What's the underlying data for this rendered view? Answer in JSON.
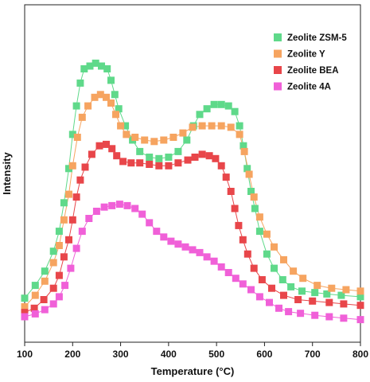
{
  "chart_data": {
    "type": "line",
    "xlabel": "Temperature (°C)",
    "ylabel": "Intensity",
    "xlim": [
      100,
      800
    ],
    "ylim": [
      0,
      1.0
    ],
    "xticks": [
      100,
      200,
      300,
      400,
      500,
      600,
      700,
      800
    ],
    "y_tick_labels": false,
    "legend_position": "top-right",
    "marker": "square",
    "series": [
      {
        "name": "Zeolite ZSM-5",
        "color": "#5fd98a",
        "points": [
          [
            100,
            0.065
          ],
          [
            122,
            0.11
          ],
          [
            142,
            0.16
          ],
          [
            160,
            0.23
          ],
          [
            172,
            0.3
          ],
          [
            182,
            0.4
          ],
          [
            192,
            0.52
          ],
          [
            200,
            0.64
          ],
          [
            208,
            0.74
          ],
          [
            216,
            0.82
          ],
          [
            224,
            0.87
          ],
          [
            236,
            0.88
          ],
          [
            248,
            0.89
          ],
          [
            260,
            0.88
          ],
          [
            272,
            0.87
          ],
          [
            280,
            0.83
          ],
          [
            288,
            0.78
          ],
          [
            296,
            0.73
          ],
          [
            310,
            0.67
          ],
          [
            325,
            0.62
          ],
          [
            340,
            0.58
          ],
          [
            360,
            0.56
          ],
          [
            380,
            0.555
          ],
          [
            400,
            0.56
          ],
          [
            420,
            0.58
          ],
          [
            438,
            0.62
          ],
          [
            452,
            0.67
          ],
          [
            465,
            0.71
          ],
          [
            480,
            0.73
          ],
          [
            495,
            0.745
          ],
          [
            510,
            0.745
          ],
          [
            525,
            0.74
          ],
          [
            538,
            0.72
          ],
          [
            548,
            0.67
          ],
          [
            556,
            0.6
          ],
          [
            564,
            0.52
          ],
          [
            572,
            0.44
          ],
          [
            580,
            0.38
          ],
          [
            590,
            0.3
          ],
          [
            605,
            0.22
          ],
          [
            620,
            0.17
          ],
          [
            638,
            0.13
          ],
          [
            655,
            0.105
          ],
          [
            678,
            0.09
          ],
          [
            705,
            0.085
          ],
          [
            730,
            0.08
          ],
          [
            760,
            0.075
          ],
          [
            800,
            0.07
          ]
        ]
      },
      {
        "name": "Zeolite Y",
        "color": "#f6a460",
        "points": [
          [
            100,
            0.035
          ],
          [
            122,
            0.075
          ],
          [
            142,
            0.125
          ],
          [
            160,
            0.19
          ],
          [
            172,
            0.25
          ],
          [
            182,
            0.34
          ],
          [
            192,
            0.43
          ],
          [
            200,
            0.53
          ],
          [
            210,
            0.63
          ],
          [
            220,
            0.7
          ],
          [
            232,
            0.74
          ],
          [
            246,
            0.77
          ],
          [
            258,
            0.78
          ],
          [
            270,
            0.77
          ],
          [
            280,
            0.75
          ],
          [
            290,
            0.71
          ],
          [
            300,
            0.67
          ],
          [
            312,
            0.64
          ],
          [
            330,
            0.63
          ],
          [
            350,
            0.62
          ],
          [
            370,
            0.615
          ],
          [
            390,
            0.62
          ],
          [
            410,
            0.63
          ],
          [
            430,
            0.645
          ],
          [
            450,
            0.665
          ],
          [
            470,
            0.67
          ],
          [
            490,
            0.67
          ],
          [
            510,
            0.67
          ],
          [
            530,
            0.665
          ],
          [
            548,
            0.64
          ],
          [
            558,
            0.58
          ],
          [
            568,
            0.5
          ],
          [
            578,
            0.42
          ],
          [
            590,
            0.35
          ],
          [
            605,
            0.29
          ],
          [
            620,
            0.245
          ],
          [
            640,
            0.2
          ],
          [
            660,
            0.16
          ],
          [
            680,
            0.135
          ],
          [
            710,
            0.11
          ],
          [
            740,
            0.1
          ],
          [
            770,
            0.095
          ],
          [
            800,
            0.09
          ]
        ]
      },
      {
        "name": "Zeolite BEA",
        "color": "#e8464a",
        "points": [
          [
            100,
            0.015
          ],
          [
            120,
            0.03
          ],
          [
            140,
            0.06
          ],
          [
            160,
            0.1
          ],
          [
            172,
            0.145
          ],
          [
            182,
            0.21
          ],
          [
            192,
            0.27
          ],
          [
            200,
            0.34
          ],
          [
            208,
            0.42
          ],
          [
            216,
            0.48
          ],
          [
            226,
            0.525
          ],
          [
            240,
            0.57
          ],
          [
            256,
            0.6
          ],
          [
            270,
            0.605
          ],
          [
            282,
            0.59
          ],
          [
            292,
            0.565
          ],
          [
            305,
            0.545
          ],
          [
            322,
            0.54
          ],
          [
            340,
            0.54
          ],
          [
            360,
            0.535
          ],
          [
            380,
            0.53
          ],
          [
            400,
            0.53
          ],
          [
            420,
            0.54
          ],
          [
            440,
            0.55
          ],
          [
            455,
            0.56
          ],
          [
            470,
            0.57
          ],
          [
            485,
            0.565
          ],
          [
            498,
            0.555
          ],
          [
            510,
            0.53
          ],
          [
            520,
            0.49
          ],
          [
            530,
            0.44
          ],
          [
            538,
            0.38
          ],
          [
            546,
            0.32
          ],
          [
            555,
            0.27
          ],
          [
            565,
            0.22
          ],
          [
            578,
            0.17
          ],
          [
            595,
            0.13
          ],
          [
            615,
            0.1
          ],
          [
            640,
            0.075
          ],
          [
            670,
            0.06
          ],
          [
            700,
            0.055
          ],
          [
            735,
            0.05
          ],
          [
            765,
            0.045
          ],
          [
            800,
            0.04
          ]
        ]
      },
      {
        "name": "Zeolite 4A",
        "color": "#f060d8",
        "points": [
          [
            100,
            0.0
          ],
          [
            122,
            0.01
          ],
          [
            142,
            0.025
          ],
          [
            160,
            0.045
          ],
          [
            172,
            0.07
          ],
          [
            184,
            0.11
          ],
          [
            196,
            0.17
          ],
          [
            208,
            0.24
          ],
          [
            220,
            0.3
          ],
          [
            234,
            0.345
          ],
          [
            250,
            0.37
          ],
          [
            266,
            0.385
          ],
          [
            282,
            0.39
          ],
          [
            298,
            0.395
          ],
          [
            314,
            0.39
          ],
          [
            330,
            0.38
          ],
          [
            345,
            0.36
          ],
          [
            360,
            0.33
          ],
          [
            375,
            0.3
          ],
          [
            390,
            0.28
          ],
          [
            405,
            0.265
          ],
          [
            420,
            0.255
          ],
          [
            435,
            0.245
          ],
          [
            450,
            0.235
          ],
          [
            465,
            0.225
          ],
          [
            480,
            0.21
          ],
          [
            495,
            0.195
          ],
          [
            510,
            0.175
          ],
          [
            525,
            0.155
          ],
          [
            540,
            0.135
          ],
          [
            555,
            0.115
          ],
          [
            572,
            0.095
          ],
          [
            590,
            0.07
          ],
          [
            610,
            0.05
          ],
          [
            630,
            0.03
          ],
          [
            650,
            0.018
          ],
          [
            675,
            0.012
          ],
          [
            705,
            0.005
          ],
          [
            735,
            0.0
          ],
          [
            765,
            -0.005
          ],
          [
            800,
            -0.01
          ]
        ]
      }
    ]
  }
}
